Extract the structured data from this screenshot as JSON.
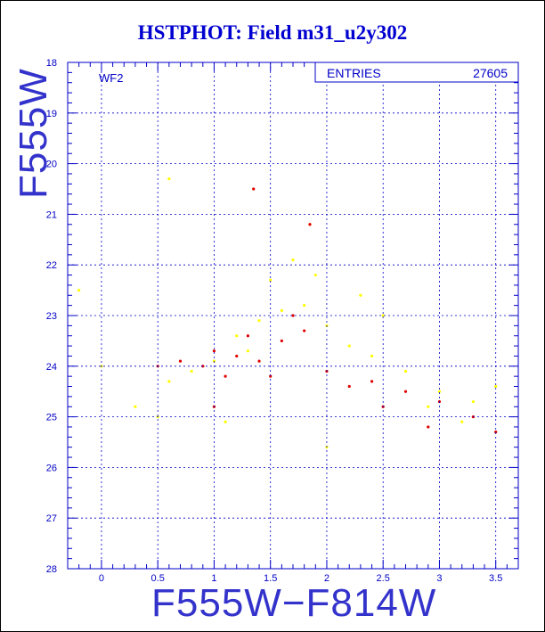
{
  "chart_data": {
    "type": "scatter",
    "title": "HSTPHOT: Field m31_u2y302",
    "xlabel": "F555W−F814W",
    "ylabel": "F555W",
    "xlim": [
      -0.3,
      3.7
    ],
    "ylim": [
      18,
      28
    ],
    "y_inverted": true,
    "grid": true,
    "x_ticks": [
      "0",
      "0.5",
      "1",
      "1.5",
      "2",
      "2.5",
      "3",
      "3.5"
    ],
    "y_ticks": [
      "18",
      "19",
      "20",
      "21",
      "22",
      "23",
      "24",
      "25",
      "26",
      "27",
      "28"
    ],
    "panel_label": "WF2",
    "stats_box": {
      "label": "ENTRIES",
      "value": "27605"
    },
    "colors": {
      "all_stars": "#ffff00",
      "selected": "#e00000",
      "axes": "#0000c8",
      "grid": "#0000c8"
    },
    "series": [
      {
        "color": "#ffff00",
        "values": [
          [
            1.6,
            22.9
          ],
          [
            1.8,
            22.8
          ],
          [
            1.4,
            23.1
          ],
          [
            2.0,
            23.2
          ],
          [
            1.2,
            23.4
          ],
          [
            2.2,
            23.6
          ],
          [
            1.5,
            22.3
          ],
          [
            1.9,
            22.2
          ],
          [
            1.7,
            21.9
          ],
          [
            2.4,
            23.8
          ],
          [
            2.7,
            24.1
          ],
          [
            3.0,
            24.5
          ],
          [
            1.0,
            23.9
          ],
          [
            0.8,
            24.1
          ],
          [
            2.5,
            23.0
          ],
          [
            1.3,
            23.7
          ],
          [
            2.9,
            24.8
          ],
          [
            3.3,
            24.7
          ],
          [
            3.5,
            24.4
          ],
          [
            0.6,
            24.3
          ],
          [
            0.3,
            24.8
          ],
          [
            0.0,
            24.0
          ],
          [
            -0.2,
            22.5
          ],
          [
            0.6,
            20.3
          ],
          [
            1.85,
            21.2
          ],
          [
            2.3,
            22.6
          ],
          [
            3.2,
            25.1
          ],
          [
            2.0,
            25.6
          ],
          [
            1.1,
            25.1
          ],
          [
            0.5,
            25.0
          ]
        ]
      },
      {
        "color": "#e00000",
        "values": [
          [
            1.2,
            23.8
          ],
          [
            1.4,
            23.9
          ],
          [
            1.0,
            23.7
          ],
          [
            1.6,
            23.5
          ],
          [
            0.9,
            24.0
          ],
          [
            1.3,
            23.4
          ],
          [
            1.8,
            23.3
          ],
          [
            2.0,
            24.1
          ],
          [
            2.4,
            24.3
          ],
          [
            2.7,
            24.5
          ],
          [
            3.0,
            24.7
          ],
          [
            1.1,
            24.2
          ],
          [
            0.7,
            23.9
          ],
          [
            1.5,
            24.2
          ],
          [
            2.2,
            24.4
          ],
          [
            3.3,
            25.0
          ],
          [
            3.5,
            25.3
          ],
          [
            1.85,
            21.2
          ],
          [
            1.35,
            20.5
          ],
          [
            2.9,
            25.2
          ],
          [
            1.7,
            23.0
          ],
          [
            1.0,
            24.8
          ],
          [
            2.5,
            24.8
          ],
          [
            0.5,
            24.0
          ]
        ]
      }
    ]
  }
}
